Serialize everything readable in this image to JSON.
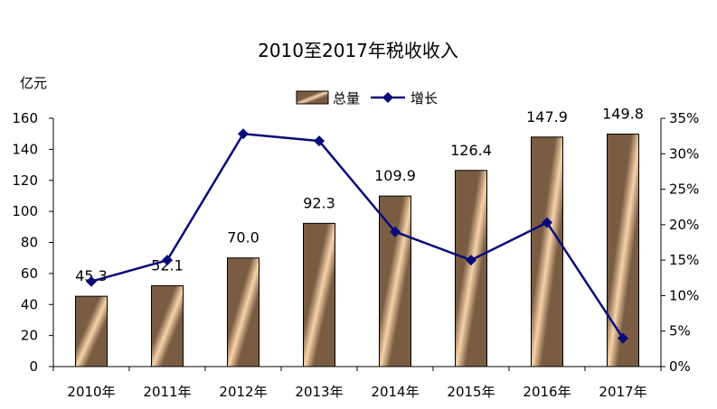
{
  "chart_data": {
    "type": "bar",
    "title": "2010至2017年税收收入",
    "y_unit_label": "亿元",
    "categories": [
      "2010年",
      "2011年",
      "2012年",
      "2013年",
      "2014年",
      "2015年",
      "2016年",
      "2017年"
    ],
    "series": [
      {
        "name": "总量",
        "type": "bar",
        "axis": "left",
        "values": [
          45.3,
          52.1,
          70.0,
          92.3,
          109.9,
          126.4,
          147.9,
          149.8
        ],
        "value_labels": [
          "45.3",
          "52.1",
          "70.0",
          "92.3",
          "109.9",
          "126.4",
          "147.9",
          "149.8"
        ]
      },
      {
        "name": "增长",
        "type": "line",
        "axis": "right",
        "values": [
          12.0,
          15.0,
          32.8,
          31.8,
          19.0,
          15.0,
          20.3,
          4.0
        ]
      }
    ],
    "ylim_left": [
      0,
      160
    ],
    "yticks_left": [
      "0",
      "20",
      "40",
      "60",
      "80",
      "100",
      "120",
      "140",
      "160"
    ],
    "ylim_right": [
      0,
      35
    ],
    "yticks_right": [
      "0%",
      "5%",
      "10%",
      "15%",
      "20%",
      "25%",
      "30%",
      "35%"
    ],
    "legend_position": "top-center",
    "grid": false,
    "colors": {
      "bar_dark": "#7a5c42",
      "bar_light": "#f7d3aa",
      "line": "#0a0a7a",
      "axis": "#000000"
    }
  }
}
